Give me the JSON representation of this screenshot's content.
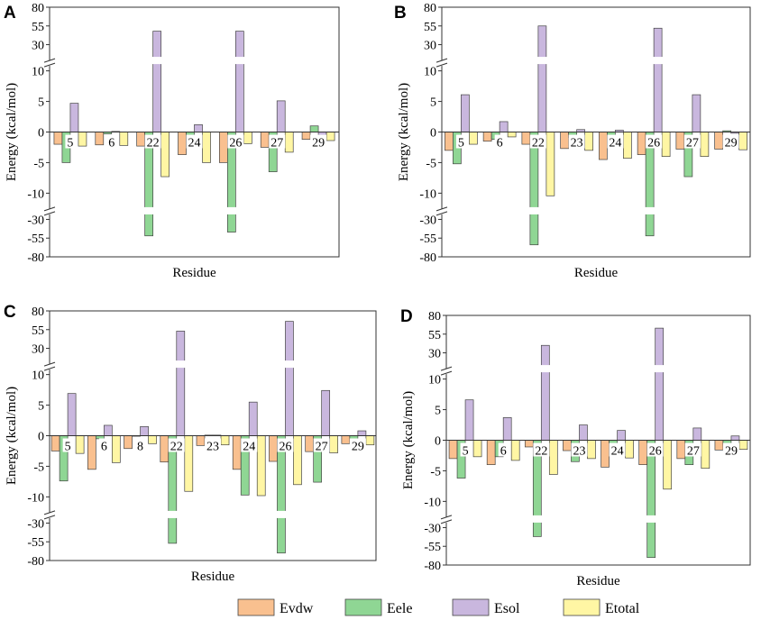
{
  "chart_data": {
    "type": "bar",
    "series_names": [
      "Evdw",
      "Eele",
      "Esol",
      "Etotal"
    ],
    "colors": {
      "Evdw": "#F9C08F",
      "Eele": "#8FD694",
      "Esol": "#C9B7DE",
      "Etotal": "#FFF6A4"
    },
    "y_ticks": [
      "80",
      "55",
      "30",
      "10",
      "5",
      "0",
      "-5",
      "-10",
      "-30",
      "-55",
      "-80"
    ],
    "y_axis": {
      "scale": "broken",
      "segments": [
        [
          30,
          80
        ],
        [
          -10,
          10
        ],
        [
          -80,
          -30
        ]
      ]
    },
    "xlabel": "Residue",
    "ylabel": "Energy (kcal/mol)",
    "panels": [
      {
        "letter": "A",
        "residues": [
          "5",
          "6",
          "22",
          "24",
          "26",
          "27",
          "29"
        ],
        "values": {
          "Evdw": [
            -2.0,
            -2.1,
            -2.3,
            -3.7,
            -5.0,
            -2.5,
            -1.2
          ],
          "Eele": [
            -5.0,
            -0.3,
            -52.0,
            -2.5,
            -47.0,
            -6.5,
            1.0
          ],
          "Esol": [
            4.7,
            0.1,
            48.0,
            1.2,
            48.0,
            5.1,
            -1.2
          ],
          "Etotal": [
            -2.3,
            -2.2,
            -7.3,
            -5.0,
            -1.9,
            -3.3,
            -1.4
          ]
        }
      },
      {
        "letter": "B",
        "residues": [
          "5",
          "6",
          "22",
          "23",
          "24",
          "26",
          "27",
          "29"
        ],
        "values": {
          "Evdw": [
            -3.0,
            -1.5,
            -2.0,
            -2.7,
            -4.5,
            -3.7,
            -2.8,
            -2.8
          ],
          "Eele": [
            -5.2,
            -1.2,
            -64.0,
            -0.9,
            -0.5,
            -52.0,
            -7.3,
            0.2
          ],
          "Esol": [
            6.1,
            1.7,
            55.0,
            0.4,
            0.3,
            52.0,
            6.1,
            -0.2
          ],
          "Etotal": [
            -2.0,
            -0.8,
            -12.0,
            -3.0,
            -4.3,
            -4.0,
            -4.0,
            -2.9
          ]
        }
      },
      {
        "letter": "C",
        "residues": [
          "5",
          "6",
          "8",
          "22",
          "23",
          "24",
          "26",
          "27",
          "29"
        ],
        "values": {
          "Evdw": [
            -2.5,
            -5.5,
            -2.1,
            -4.3,
            -1.6,
            -5.5,
            -4.2,
            -2.6,
            -1.3
          ],
          "Eele": [
            -7.4,
            -0.5,
            0.0,
            -57.0,
            0.1,
            -9.7,
            -70.0,
            -7.6,
            -1.0
          ],
          "Esol": [
            6.9,
            1.7,
            1.5,
            53.0,
            0.1,
            5.5,
            66.0,
            7.4,
            0.8
          ],
          "Etotal": [
            -2.9,
            -4.4,
            -1.3,
            -9.1,
            -1.5,
            -9.8,
            -8.0,
            -2.8,
            -1.5
          ]
        }
      },
      {
        "letter": "D",
        "residues": [
          "5",
          "6",
          "22",
          "23",
          "24",
          "26",
          "27",
          "29"
        ],
        "values": {
          "Evdw": [
            -3.0,
            -4.0,
            -1.1,
            -1.7,
            -4.4,
            -4.0,
            -3.0,
            -1.6
          ],
          "Eele": [
            -6.2,
            -2.7,
            -42.0,
            -3.5,
            -0.5,
            -70.0,
            -4.0,
            -0.8
          ],
          "Esol": [
            6.6,
            3.7,
            40.0,
            2.5,
            1.6,
            63.0,
            2.0,
            0.7
          ],
          "Etotal": [
            -2.7,
            -3.3,
            -5.6,
            -3.0,
            -2.9,
            -8.0,
            -4.6,
            -1.5
          ]
        }
      }
    ],
    "legend": [
      "Evdw",
      "Eele",
      "Esol",
      "Etotal"
    ],
    "legend_position": "bottom-center"
  }
}
